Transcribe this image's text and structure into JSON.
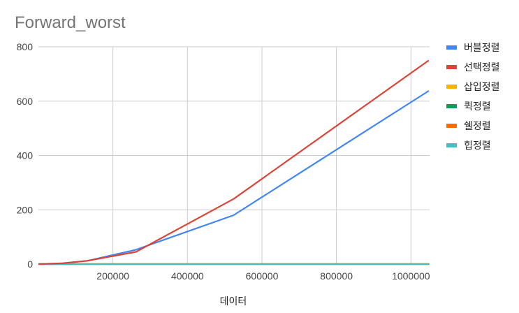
{
  "chart_data": {
    "type": "line",
    "title": "Forward_worst",
    "xlabel": "데이터",
    "ylabel": "",
    "xlim": [
      0,
      1050000
    ],
    "ylim": [
      0,
      800
    ],
    "x_ticks": [
      200000,
      400000,
      600000,
      800000,
      1000000
    ],
    "x_tick_labels": [
      "200000",
      "400000",
      "600000",
      "800000",
      "1000000"
    ],
    "y_ticks": [
      0,
      200,
      400,
      600,
      800
    ],
    "y_tick_labels": [
      "0",
      "200",
      "400",
      "600",
      "800"
    ],
    "grid": true,
    "legend_position": "right",
    "series": [
      {
        "name": "버블정렬",
        "color": "#4285f4",
        "points": [
          [
            0,
            0
          ],
          [
            65000,
            3
          ],
          [
            131000,
            12
          ],
          [
            262000,
            53
          ],
          [
            524000,
            180
          ],
          [
            1048000,
            638
          ]
        ]
      },
      {
        "name": "선택정렬",
        "color": "#db4437",
        "points": [
          [
            0,
            0
          ],
          [
            65000,
            3
          ],
          [
            131000,
            12
          ],
          [
            262000,
            45
          ],
          [
            524000,
            240
          ],
          [
            1048000,
            750
          ]
        ]
      },
      {
        "name": "삽입정렬",
        "color": "#f4b400",
        "points": [
          [
            0,
            0
          ],
          [
            65000,
            0
          ],
          [
            131000,
            0
          ],
          [
            262000,
            0
          ],
          [
            524000,
            0
          ],
          [
            1048000,
            0
          ]
        ]
      },
      {
        "name": "퀵정렬",
        "color": "#0f9d58",
        "points": [
          [
            0,
            0
          ],
          [
            65000,
            0
          ],
          [
            131000,
            0
          ],
          [
            262000,
            0
          ],
          [
            524000,
            0
          ],
          [
            1048000,
            0
          ]
        ]
      },
      {
        "name": "쉘정렬",
        "color": "#ff6d00",
        "points": [
          [
            0,
            0
          ],
          [
            65000,
            0
          ],
          [
            131000,
            0
          ],
          [
            262000,
            0
          ],
          [
            524000,
            0
          ],
          [
            1048000,
            0
          ]
        ]
      },
      {
        "name": "힙정렬",
        "color": "#46bdc6",
        "points": [
          [
            0,
            0
          ],
          [
            65000,
            0
          ],
          [
            131000,
            0
          ],
          [
            262000,
            0
          ],
          [
            524000,
            0
          ],
          [
            1048000,
            0
          ]
        ]
      }
    ]
  }
}
